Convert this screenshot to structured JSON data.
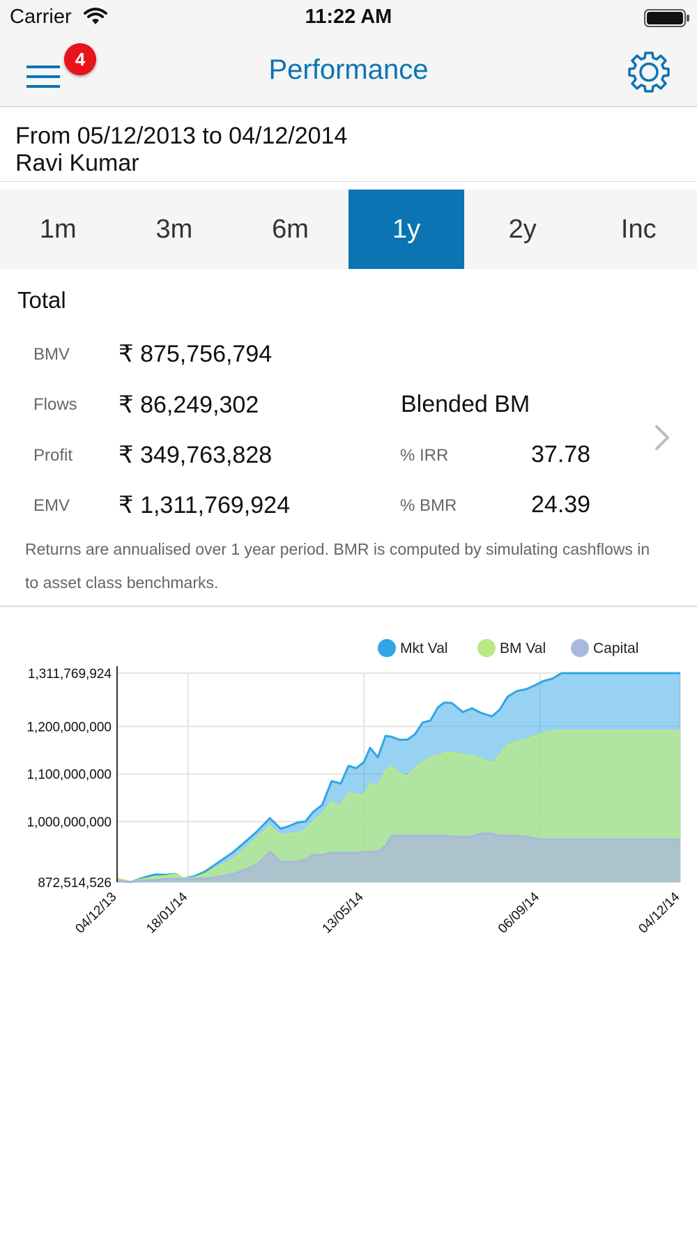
{
  "status_bar": {
    "carrier": "Carrier",
    "time": "11:22 AM"
  },
  "nav": {
    "title": "Performance",
    "badge_count": "4",
    "menu_icon": "hamburger-menu-icon",
    "settings_icon": "gear-icon"
  },
  "header": {
    "date_range": "From 05/12/2013 to 04/12/2014",
    "client_name": "Ravi Kumar"
  },
  "tabs": [
    {
      "label": "1m",
      "active": false
    },
    {
      "label": "3m",
      "active": false
    },
    {
      "label": "6m",
      "active": false
    },
    {
      "label": "1y",
      "active": true
    },
    {
      "label": "2y",
      "active": false
    },
    {
      "label": "Inc",
      "active": false
    }
  ],
  "summary": {
    "heading": "Total",
    "metrics": [
      {
        "label": "BMV",
        "value": "₹ 875,756,794"
      },
      {
        "label": "Flows",
        "value": "₹ 86,249,302"
      },
      {
        "label": "Profit",
        "value": "₹ 349,763,828"
      },
      {
        "label": "EMV",
        "value": "₹ 1,311,769,924"
      }
    ],
    "benchmark": {
      "title": "Blended BM",
      "metrics": [
        {
          "label": "% IRR",
          "value": "37.78"
        },
        {
          "label": "% BMR",
          "value": "24.39"
        }
      ]
    },
    "note": "Returns are annualised over 1 year period. BMR is computed by simulating cashflows in to asset class benchmarks."
  },
  "colors": {
    "accent": "#0b74b3",
    "badge": "#e8131b",
    "mkt_val": "#2fa6e6",
    "bm_val": "#b8e986",
    "capital": "#a9b8dc"
  },
  "chart_data": {
    "type": "area",
    "y_tick_labels": [
      "1,311,769,924",
      "1,200,000,000",
      "1,100,000,000",
      "1,000,000,000",
      "872,514,526"
    ],
    "ylim": [
      872514526,
      1311769924
    ],
    "x_tick_labels": [
      "04/12/13",
      "18/01/14",
      "13/05/14",
      "06/09/14",
      "04/12/14"
    ],
    "x_tick_positions": [
      0,
      46,
      160,
      274,
      365
    ],
    "legend": "top-right",
    "grid": true,
    "x": [
      0,
      9,
      17,
      25,
      31,
      38,
      43,
      50,
      57,
      66,
      75,
      84,
      91,
      99,
      106,
      111,
      117,
      122,
      127,
      133,
      139,
      145,
      150,
      155,
      160,
      164,
      169,
      174,
      178,
      183,
      188,
      193,
      198,
      203,
      208,
      212,
      217,
      224,
      230,
      236,
      243,
      248,
      253,
      259,
      265,
      270,
      276,
      282,
      288,
      293,
      299,
      304,
      310,
      317,
      323,
      330,
      336,
      343,
      350,
      356,
      365
    ],
    "series": [
      {
        "name": "Mkt Val",
        "values": [
          876000000,
          873000000,
          882000000,
          889000000,
          888000000,
          890000000,
          880000000,
          885000000,
          895000000,
          915000000,
          935000000,
          960000000,
          980000000,
          1007000000,
          985000000,
          990000000,
          998000000,
          1000000000,
          1020000000,
          1035000000,
          1085000000,
          1080000000,
          1117000000,
          1112000000,
          1125000000,
          1155000000,
          1135000000,
          1180000000,
          1178000000,
          1172000000,
          1172000000,
          1183000000,
          1208000000,
          1212000000,
          1240000000,
          1250000000,
          1249000000,
          1230000000,
          1238000000,
          1228000000,
          1221000000,
          1235000000,
          1262000000,
          1274000000,
          1278000000,
          1285000000,
          1295000000,
          1300000000,
          1311769924,
          1311769924,
          1311769924,
          1311769924,
          1311769924,
          1311769924,
          1311769924,
          1311769924,
          1311769924,
          1311769924,
          1311769924,
          1311769924,
          1311769924
        ]
      },
      {
        "name": "BM Val",
        "values": [
          880000000,
          873000000,
          879000000,
          883000000,
          885000000,
          889000000,
          880000000,
          882000000,
          890000000,
          905000000,
          920000000,
          945000000,
          965000000,
          990000000,
          970000000,
          973000000,
          976000000,
          980000000,
          1000000000,
          1015000000,
          1040000000,
          1033000000,
          1060000000,
          1056000000,
          1055000000,
          1080000000,
          1072000000,
          1105000000,
          1115000000,
          1100000000,
          1095000000,
          1110000000,
          1125000000,
          1133000000,
          1138000000,
          1143000000,
          1145000000,
          1140000000,
          1138000000,
          1130000000,
          1122000000,
          1138000000,
          1160000000,
          1167000000,
          1172000000,
          1178000000,
          1185000000,
          1190000000,
          1190000000,
          1190000000,
          1190000000,
          1190000000,
          1190000000,
          1190000000,
          1190000000,
          1190000000,
          1190000000,
          1190000000,
          1190000000,
          1190000000,
          1190000000
        ]
      },
      {
        "name": "Capital",
        "values": [
          876000000,
          873000000,
          876000000,
          877000000,
          879000000,
          880000000,
          879000000,
          880000000,
          880000000,
          884000000,
          889000000,
          900000000,
          910000000,
          937000000,
          915000000,
          915000000,
          916000000,
          920000000,
          930000000,
          930000000,
          934000000,
          934000000,
          934000000,
          934000000,
          936000000,
          936000000,
          937000000,
          948000000,
          970000000,
          970000000,
          970000000,
          970000000,
          970000000,
          970000000,
          970000000,
          970000000,
          968000000,
          968000000,
          968000000,
          975000000,
          975000000,
          970000000,
          970000000,
          970000000,
          968000000,
          965000000,
          962000000,
          962000000,
          962000000,
          962000000,
          962000000,
          962000000,
          962000000,
          962000000,
          962000000,
          962000000,
          962000000,
          962000000,
          962000000,
          962000000,
          962000000
        ]
      }
    ]
  }
}
